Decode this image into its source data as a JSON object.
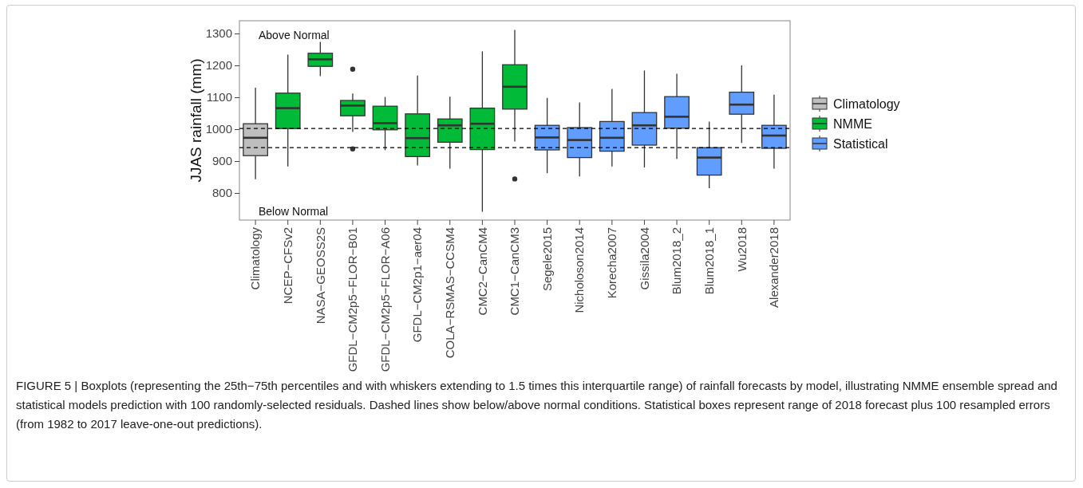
{
  "chart_data": {
    "type": "box",
    "ylabel": "JJAS rainfall (mm)",
    "categories": [
      "Climatology",
      "NCEP−CFSv2",
      "NASA−GEOSS2S",
      "GFDL−CM2p5−FLOR−B01",
      "GFDL−CM2p5−FLOR−A06",
      "GFDL−CM2p1−aer04",
      "COLA−RSMAS−CCSM4",
      "CMC2−CanCM4",
      "CMC1−CanCM3",
      "Segele2015",
      "Nicholoson2014",
      "Korecha2007",
      "Gissila2004",
      "Blum2018_2",
      "Blum2018_1",
      "Wu2018",
      "Alexander2018"
    ],
    "ylim": [
      715,
      1340
    ],
    "yticks": [
      800,
      900,
      1000,
      1100,
      1200,
      1300
    ],
    "legend": "right",
    "grid": false,
    "series": [
      {
        "name": "Climatology",
        "color": "#bebebe",
        "boxes": [
          {
            "low": 843,
            "q1": 917,
            "median": 973,
            "q3": 1017,
            "high": 1130
          },
          null,
          null,
          null,
          null,
          null,
          null,
          null,
          null,
          null,
          null,
          null,
          null,
          null,
          null,
          null,
          null
        ]
      },
      {
        "name": "NMME",
        "color": "#00ba38",
        "boxes": [
          null,
          {
            "low": 883,
            "q1": 1002,
            "median": 1066,
            "q3": 1113,
            "high": 1234
          },
          {
            "low": 1166,
            "q1": 1197,
            "median": 1219,
            "q3": 1238,
            "high": 1274
          },
          {
            "low": 991,
            "q1": 1042,
            "median": 1074,
            "q3": 1090,
            "high": 1112,
            "outliers": [
              1188,
              938
            ]
          },
          {
            "low": 934,
            "q1": 998,
            "median": 1019,
            "q3": 1072,
            "high": 1101
          },
          {
            "low": 886,
            "q1": 914,
            "median": 972,
            "q3": 1048,
            "high": 1168
          },
          {
            "low": 876,
            "q1": 959,
            "median": 1012,
            "q3": 1032,
            "high": 1102
          },
          {
            "low": 741,
            "q1": 936,
            "median": 1017,
            "q3": 1066,
            "high": 1244
          },
          {
            "low": 961,
            "q1": 1063,
            "median": 1133,
            "q3": 1202,
            "high": 1311,
            "outliers": [
              844
            ]
          },
          null,
          null,
          null,
          null,
          null,
          null,
          null,
          null
        ]
      },
      {
        "name": "Statistical",
        "color": "#619cff",
        "boxes": [
          null,
          null,
          null,
          null,
          null,
          null,
          null,
          null,
          null,
          {
            "low": 862,
            "q1": 935,
            "median": 974,
            "q3": 1012,
            "high": 1098
          },
          {
            "low": 852,
            "q1": 911,
            "median": 966,
            "q3": 1005,
            "high": 1084
          },
          {
            "low": 883,
            "q1": 931,
            "median": 973,
            "q3": 1024,
            "high": 1126
          },
          {
            "low": 880,
            "q1": 950,
            "median": 1012,
            "q3": 1052,
            "high": 1184
          },
          {
            "low": 907,
            "q1": 1003,
            "median": 1039,
            "q3": 1102,
            "high": 1174
          },
          {
            "low": 815,
            "q1": 856,
            "median": 911,
            "q3": 942,
            "high": 1024
          },
          {
            "low": 957,
            "q1": 1047,
            "median": 1077,
            "q3": 1116,
            "high": 1200
          },
          {
            "low": 876,
            "q1": 940,
            "median": 980,
            "q3": 1012,
            "high": 1108
          }
        ]
      }
    ],
    "ref_lines": [
      {
        "axis": "y",
        "value": 1002,
        "line_style": "dashed"
      },
      {
        "axis": "y",
        "value": 942,
        "line_style": "dashed"
      }
    ],
    "annotations": [
      "Above Normal",
      "Below Normal",
      "FIGURE 5 | Boxplots (representing the 25th−75th percentiles and with whiskers extending to 1.5 times this interquartile range) of rainfall forecasts by model, illustrating NMME ensemble spread and statistical models prediction with 100 randomly-selected residuals. Dashed lines show below/above normal conditions. Statistical boxes represent range of 2018 forecast plus 100 resampled errors (from 1982 to 2017 leave-one-out predictions)."
    ]
  }
}
